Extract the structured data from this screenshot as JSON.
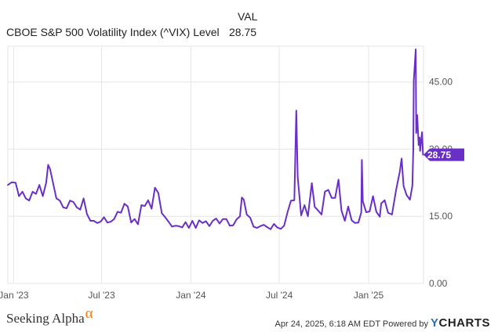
{
  "legend": {
    "header": "VAL",
    "series_name": "CBOE S&P 500 Volatility Index (^VIX) Level",
    "last_value": "28.75"
  },
  "footer": {
    "brand": "Seeking Alpha",
    "brand_mark": "α",
    "timestamp": "Apr 24, 2025, 6:18 AM EDT Powered by",
    "ycharts_y": "Y",
    "ycharts_rest": "CHARTS"
  },
  "colors": {
    "line": "#6a2fc4",
    "grid": "#e6e6e6",
    "label": "#ffffff"
  },
  "chart_data": {
    "type": "line",
    "series": [
      {
        "name": "CBOE S&P 500 Volatility Index (^VIX) Level"
      }
    ],
    "x_tick_labels": [
      "Jan '23",
      "Jul '23",
      "Jan '24",
      "Jul '24",
      "Jan '25"
    ],
    "y_tick_labels": [
      "0.00",
      "15.00",
      "30.00",
      "45.00"
    ],
    "ylim": [
      0,
      53
    ],
    "xlim": [
      "2022-12-20",
      "2025-04-24"
    ],
    "grid": true,
    "last_value_label": "28.75",
    "points": [
      [
        "2022-12-20",
        22.0
      ],
      [
        "2022-12-28",
        22.6
      ],
      [
        "2023-01-05",
        22.5
      ],
      [
        "2023-01-12",
        19.5
      ],
      [
        "2023-01-19",
        20.5
      ],
      [
        "2023-01-26",
        19.0
      ],
      [
        "2023-02-02",
        18.5
      ],
      [
        "2023-02-09",
        20.5
      ],
      [
        "2023-02-16",
        20.0
      ],
      [
        "2023-02-23",
        22.0
      ],
      [
        "2023-03-02",
        19.5
      ],
      [
        "2023-03-09",
        22.5
      ],
      [
        "2023-03-13",
        26.5
      ],
      [
        "2023-03-17",
        25.5
      ],
      [
        "2023-03-23",
        22.5
      ],
      [
        "2023-03-30",
        19.0
      ],
      [
        "2023-04-06",
        18.5
      ],
      [
        "2023-04-13",
        17.0
      ],
      [
        "2023-04-20",
        16.8
      ],
      [
        "2023-04-27",
        18.5
      ],
      [
        "2023-05-04",
        18.2
      ],
      [
        "2023-05-11",
        17.0
      ],
      [
        "2023-05-18",
        16.5
      ],
      [
        "2023-05-25",
        19.0
      ],
      [
        "2023-06-01",
        15.5
      ],
      [
        "2023-06-08",
        14.0
      ],
      [
        "2023-06-15",
        14.0
      ],
      [
        "2023-06-22",
        13.5
      ],
      [
        "2023-06-29",
        13.8
      ],
      [
        "2023-07-06",
        14.8
      ],
      [
        "2023-07-13",
        13.6
      ],
      [
        "2023-07-20",
        13.8
      ],
      [
        "2023-07-27",
        14.4
      ],
      [
        "2023-08-03",
        16.0
      ],
      [
        "2023-08-10",
        15.8
      ],
      [
        "2023-08-17",
        17.8
      ],
      [
        "2023-08-24",
        17.2
      ],
      [
        "2023-08-31",
        13.6
      ],
      [
        "2023-09-07",
        14.4
      ],
      [
        "2023-09-14",
        13.2
      ],
      [
        "2023-09-21",
        17.5
      ],
      [
        "2023-09-28",
        17.3
      ],
      [
        "2023-10-05",
        18.6
      ],
      [
        "2023-10-12",
        16.7
      ],
      [
        "2023-10-19",
        21.4
      ],
      [
        "2023-10-26",
        20.2
      ],
      [
        "2023-11-02",
        15.7
      ],
      [
        "2023-11-09",
        14.8
      ],
      [
        "2023-11-16",
        13.8
      ],
      [
        "2023-11-23",
        12.7
      ],
      [
        "2023-11-30",
        12.9
      ],
      [
        "2023-12-07",
        12.8
      ],
      [
        "2023-12-14",
        12.5
      ],
      [
        "2023-12-21",
        13.7
      ],
      [
        "2023-12-28",
        12.4
      ],
      [
        "2024-01-04",
        14.0
      ],
      [
        "2024-01-11",
        12.4
      ],
      [
        "2024-01-18",
        14.1
      ],
      [
        "2024-01-25",
        13.5
      ],
      [
        "2024-02-01",
        13.9
      ],
      [
        "2024-02-08",
        12.8
      ],
      [
        "2024-02-15",
        14.0
      ],
      [
        "2024-02-22",
        14.5
      ],
      [
        "2024-02-29",
        13.4
      ],
      [
        "2024-03-07",
        14.4
      ],
      [
        "2024-03-14",
        14.4
      ],
      [
        "2024-03-21",
        12.9
      ],
      [
        "2024-03-28",
        13.0
      ],
      [
        "2024-04-04",
        14.3
      ],
      [
        "2024-04-11",
        15.0
      ],
      [
        "2024-04-15",
        19.2
      ],
      [
        "2024-04-19",
        18.7
      ],
      [
        "2024-04-25",
        15.4
      ],
      [
        "2024-05-02",
        14.7
      ],
      [
        "2024-05-09",
        12.7
      ],
      [
        "2024-05-16",
        12.4
      ],
      [
        "2024-05-23",
        12.8
      ],
      [
        "2024-05-30",
        13.1
      ],
      [
        "2024-06-06",
        12.6
      ],
      [
        "2024-06-13",
        12.1
      ],
      [
        "2024-06-20",
        13.3
      ],
      [
        "2024-06-27",
        12.5
      ],
      [
        "2024-07-04",
        12.2
      ],
      [
        "2024-07-11",
        12.9
      ],
      [
        "2024-07-18",
        15.9
      ],
      [
        "2024-07-25",
        18.5
      ],
      [
        "2024-08-01",
        18.6
      ],
      [
        "2024-08-05",
        38.6
      ],
      [
        "2024-08-08",
        23.8
      ],
      [
        "2024-08-15",
        15.2
      ],
      [
        "2024-08-22",
        17.5
      ],
      [
        "2024-08-29",
        15.0
      ],
      [
        "2024-09-06",
        22.4
      ],
      [
        "2024-09-12",
        17.1
      ],
      [
        "2024-09-19",
        16.3
      ],
      [
        "2024-09-26",
        15.4
      ],
      [
        "2024-10-03",
        20.5
      ],
      [
        "2024-10-10",
        20.9
      ],
      [
        "2024-10-17",
        19.1
      ],
      [
        "2024-10-24",
        19.1
      ],
      [
        "2024-10-31",
        23.2
      ],
      [
        "2024-11-06",
        16.3
      ],
      [
        "2024-11-13",
        14.0
      ],
      [
        "2024-11-20",
        17.2
      ],
      [
        "2024-11-27",
        14.1
      ],
      [
        "2024-12-04",
        13.5
      ],
      [
        "2024-12-11",
        13.6
      ],
      [
        "2024-12-17",
        15.9
      ],
      [
        "2024-12-18",
        27.6
      ],
      [
        "2024-12-20",
        18.4
      ],
      [
        "2024-12-27",
        15.9
      ],
      [
        "2025-01-03",
        16.1
      ],
      [
        "2025-01-10",
        19.5
      ],
      [
        "2025-01-17",
        16.0
      ],
      [
        "2025-01-24",
        14.9
      ],
      [
        "2025-01-27",
        17.9
      ],
      [
        "2025-02-03",
        18.6
      ],
      [
        "2025-02-10",
        15.8
      ],
      [
        "2025-02-18",
        15.4
      ],
      [
        "2025-02-27",
        21.1
      ],
      [
        "2025-03-06",
        24.9
      ],
      [
        "2025-03-10",
        27.9
      ],
      [
        "2025-03-14",
        21.8
      ],
      [
        "2025-03-20",
        19.8
      ],
      [
        "2025-03-27",
        18.7
      ],
      [
        "2025-04-01",
        21.8
      ],
      [
        "2025-04-03",
        30.0
      ],
      [
        "2025-04-04",
        45.3
      ],
      [
        "2025-04-08",
        52.3
      ],
      [
        "2025-04-09",
        33.6
      ],
      [
        "2025-04-11",
        37.6
      ],
      [
        "2025-04-14",
        30.9
      ],
      [
        "2025-04-16",
        32.6
      ],
      [
        "2025-04-17",
        29.6
      ],
      [
        "2025-04-21",
        33.8
      ],
      [
        "2025-04-23",
        28.75
      ]
    ]
  }
}
